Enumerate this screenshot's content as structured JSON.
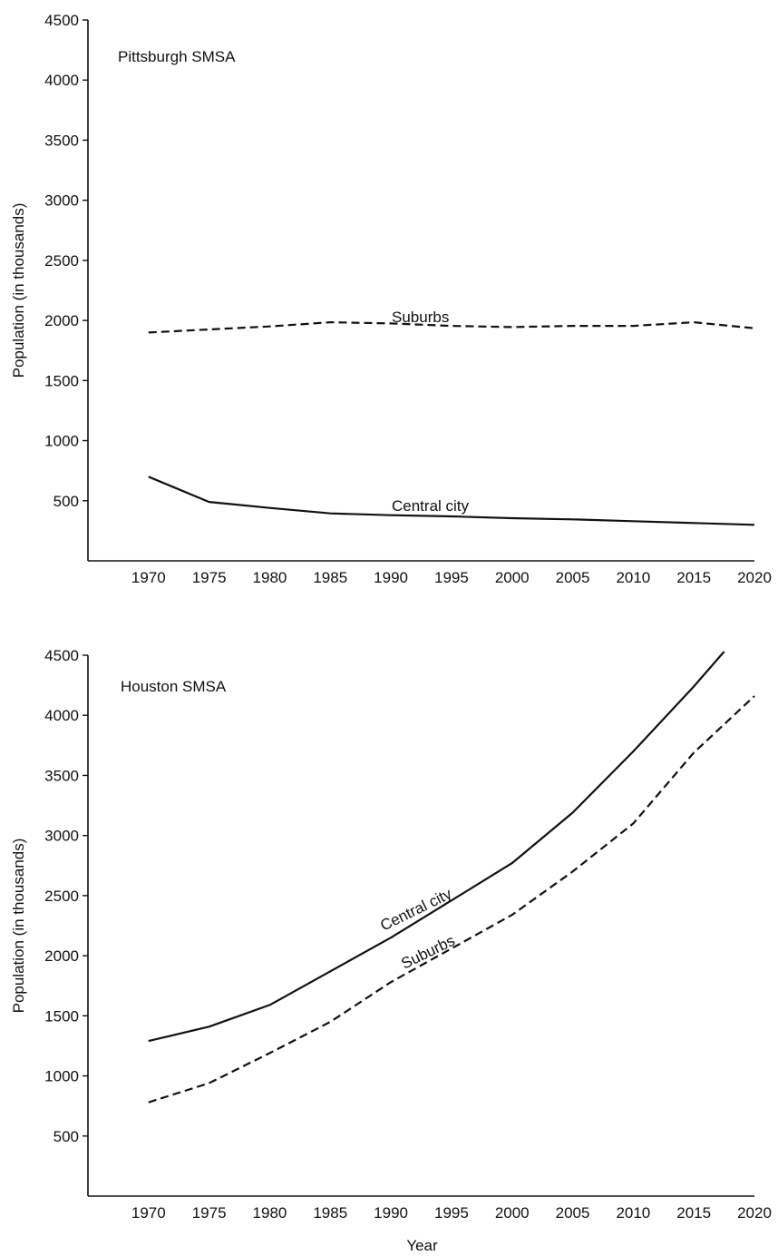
{
  "chart_data": [
    {
      "type": "line",
      "title": "Pittsburgh SMSA",
      "xlabel": "",
      "ylabel": "Population (in thousands)",
      "x": [
        1970,
        1975,
        1980,
        1985,
        1990,
        1995,
        2000,
        2005,
        2010,
        2015,
        2020
      ],
      "xlim": [
        1965,
        2020
      ],
      "ylim": [
        0,
        4500
      ],
      "yticks": [
        500,
        1000,
        1500,
        2000,
        2500,
        3000,
        3500,
        4000,
        4500
      ],
      "series": [
        {
          "name": "Suburbs",
          "style": "dashed",
          "x": [
            1970,
            1975,
            1980,
            1985,
            1990,
            1995,
            2000,
            2005,
            2010,
            2015,
            2020
          ],
          "values": [
            1900,
            1925,
            1950,
            1985,
            1975,
            1955,
            1945,
            1955,
            1955,
            1985,
            1935
          ]
        },
        {
          "name": "Central city",
          "style": "solid",
          "x": [
            1970,
            1975,
            1980,
            1985,
            1990,
            1995,
            2000,
            2005,
            2010,
            2015,
            2020
          ],
          "values": [
            700,
            490,
            440,
            395,
            380,
            370,
            355,
            345,
            330,
            315,
            300
          ]
        }
      ]
    },
    {
      "type": "line",
      "title": "Houston SMSA",
      "xlabel": "Year",
      "ylabel": "Population (in thousands)",
      "x": [
        1970,
        1975,
        1980,
        1985,
        1990,
        1995,
        2000,
        2005,
        2010,
        2015,
        2020
      ],
      "xlim": [
        1965,
        2020
      ],
      "ylim": [
        0,
        4500
      ],
      "yticks": [
        500,
        1000,
        1500,
        2000,
        2500,
        3000,
        3500,
        4000,
        4500
      ],
      "series": [
        {
          "name": "Central city",
          "style": "solid",
          "x": [
            1970,
            1975,
            1980,
            1985,
            1990,
            1995,
            2000,
            2005,
            2010,
            2015,
            2017.5
          ],
          "values": [
            1290,
            1410,
            1590,
            1870,
            2150,
            2460,
            2770,
            3190,
            3700,
            4240,
            4530
          ]
        },
        {
          "name": "Suburbs",
          "style": "dashed",
          "x": [
            1970,
            1975,
            1980,
            1985,
            1990,
            1995,
            2000,
            2005,
            2010,
            2015,
            2020
          ],
          "values": [
            780,
            940,
            1190,
            1450,
            1780,
            2060,
            2340,
            2700,
            3100,
            3690,
            4160
          ]
        }
      ]
    }
  ]
}
